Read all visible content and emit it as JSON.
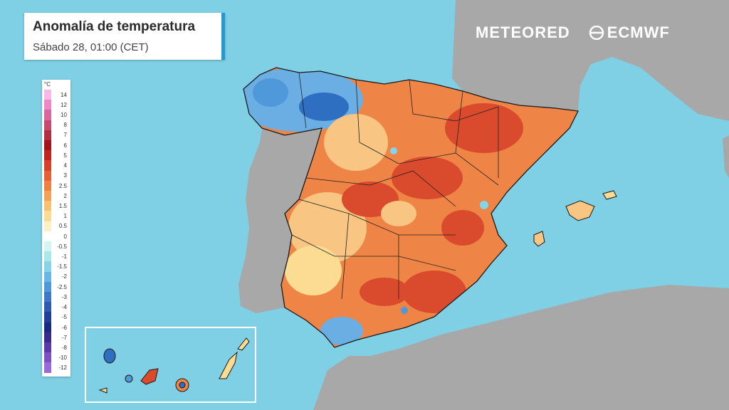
{
  "header": {
    "title": "Anomalía de temperatura",
    "subtitle": "Sábado 28, 01:00 (CET)"
  },
  "branding": {
    "meteored": "METEORED",
    "ecmwf": "ECMWF"
  },
  "legend": {
    "unit": "°C",
    "items": [
      {
        "label": "14",
        "color": "#f7b8e6"
      },
      {
        "label": "12",
        "color": "#ee86c8"
      },
      {
        "label": "10",
        "color": "#d9669e"
      },
      {
        "label": "8",
        "color": "#c64a6f"
      },
      {
        "label": "7",
        "color": "#b52c3f"
      },
      {
        "label": "6",
        "color": "#a3141d"
      },
      {
        "label": "5",
        "color": "#c2231d"
      },
      {
        "label": "4",
        "color": "#d9402a"
      },
      {
        "label": "3",
        "color": "#e65f35"
      },
      {
        "label": "2.5",
        "color": "#ef8042"
      },
      {
        "label": "2",
        "color": "#f4a055"
      },
      {
        "label": "1.5",
        "color": "#f8c070"
      },
      {
        "label": "1",
        "color": "#fbdc92"
      },
      {
        "label": "0.5",
        "color": "#fdf0c4"
      },
      {
        "label": "0",
        "color": "#ffffff"
      },
      {
        "label": "-0.5",
        "color": "#d6f4f2"
      },
      {
        "label": "-1",
        "color": "#a9e8e6"
      },
      {
        "label": "-1.5",
        "color": "#86d4e8"
      },
      {
        "label": "-2",
        "color": "#68b8e6"
      },
      {
        "label": "-2.5",
        "color": "#4f98da"
      },
      {
        "label": "-3",
        "color": "#3d78c8"
      },
      {
        "label": "-4",
        "color": "#2d5ab4"
      },
      {
        "label": "-5",
        "color": "#1f3f9b"
      },
      {
        "label": "-6",
        "color": "#152c80"
      },
      {
        "label": "-7",
        "color": "#3b2a8e"
      },
      {
        "label": "-8",
        "color": "#5a3aa8"
      },
      {
        "label": "-10",
        "color": "#7a52c4"
      },
      {
        "label": "-12",
        "color": "#9a6ad8"
      }
    ]
  },
  "colors": {
    "sea": "#7fcfe5",
    "land_other": "#a8a8a8",
    "warm": "#ee8445",
    "hot": "#d94b2c",
    "mild": "#f8c582",
    "cool": "#6aaee3",
    "cold": "#2f6fc2"
  }
}
